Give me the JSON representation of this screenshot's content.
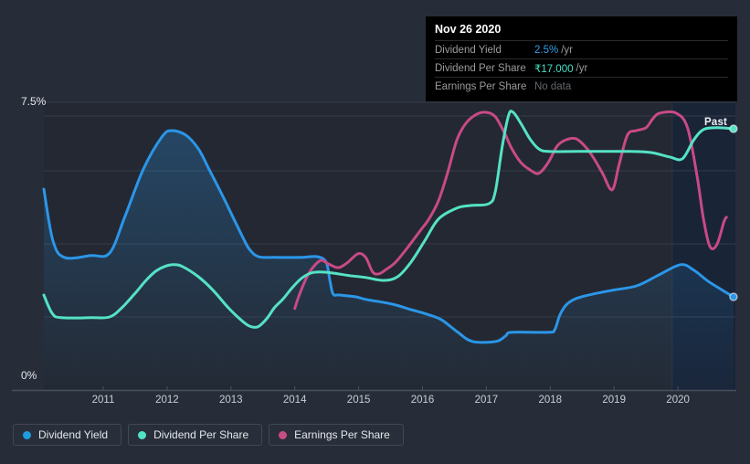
{
  "colors": {
    "background": "#272d38",
    "plot_bg_overlay": "rgba(0,0,0,0.10)",
    "plot_top_edge": "#343d4a",
    "grid": "#39424f",
    "axis": "#47505e",
    "tick": "#4a5361",
    "dividend_yield": "#2b96e8",
    "dividend_per_share": "#55e2c5",
    "earnings_per_share": "#c84a86",
    "area_fill_top": "rgba(43,150,232,0.30)",
    "area_fill_bottom": "rgba(43,150,232,0.02)",
    "past_band": "rgba(13,32,62,0.45)",
    "past_band_edge": "rgba(255,255,255,0.06)",
    "dot_ring": "rgba(255,255,255,0.55)"
  },
  "tooltip": {
    "date": "Nov 26 2020",
    "rows": [
      {
        "label": "Dividend Yield",
        "value": "2.5%",
        "suffix": "/yr",
        "value_color": "#2d9fe8"
      },
      {
        "label": "Dividend Per Share",
        "value": "₹17.000",
        "suffix": "/yr",
        "value_color": "#46e0c4"
      },
      {
        "label": "Earnings Per Share",
        "value": "No data",
        "suffix": "",
        "value_color": "#63686f"
      }
    ]
  },
  "chart_data": {
    "type": "line",
    "title": "",
    "y_tick_labels": {
      "top": "7.5%",
      "bottom": "0%"
    },
    "ylim": [
      0,
      7.5
    ],
    "x_range": [
      2010.05,
      2020.9
    ],
    "x_tick_labels": [
      "2011",
      "2012",
      "2013",
      "2014",
      "2015",
      "2016",
      "2017",
      "2018",
      "2019",
      "2020"
    ],
    "gridline_values": [
      7.5,
      6,
      4,
      2
    ],
    "grid": true,
    "legend_position": "bottom",
    "past_region": {
      "start_year": 2019.91,
      "label": "Past"
    },
    "series": [
      {
        "name": "Dividend Yield",
        "color": "#2b96e8",
        "area": true,
        "end_dot": true,
        "end_value_label": "2.5% /yr",
        "points": [
          [
            2010.07,
            5.5
          ],
          [
            2010.21,
            4.1
          ],
          [
            2010.39,
            3.63
          ],
          [
            2010.81,
            3.68
          ],
          [
            2011.1,
            3.75
          ],
          [
            2011.34,
            4.75
          ],
          [
            2011.63,
            6.05
          ],
          [
            2011.92,
            6.93
          ],
          [
            2012.07,
            7.1
          ],
          [
            2012.29,
            6.98
          ],
          [
            2012.49,
            6.6
          ],
          [
            2012.67,
            6.0
          ],
          [
            2012.86,
            5.35
          ],
          [
            2013.06,
            4.63
          ],
          [
            2013.2,
            4.13
          ],
          [
            2013.29,
            3.85
          ],
          [
            2013.43,
            3.65
          ],
          [
            2013.68,
            3.63
          ],
          [
            2014.1,
            3.63
          ],
          [
            2014.35,
            3.65
          ],
          [
            2014.49,
            3.5
          ],
          [
            2014.55,
            3.0
          ],
          [
            2014.6,
            2.63
          ],
          [
            2014.7,
            2.6
          ],
          [
            2014.96,
            2.55
          ],
          [
            2015.11,
            2.48
          ],
          [
            2015.53,
            2.35
          ],
          [
            2015.82,
            2.2
          ],
          [
            2016.06,
            2.08
          ],
          [
            2016.29,
            1.93
          ],
          [
            2016.54,
            1.6
          ],
          [
            2016.78,
            1.33
          ],
          [
            2017.15,
            1.33
          ],
          [
            2017.3,
            1.48
          ],
          [
            2017.4,
            1.58
          ],
          [
            2017.97,
            1.58
          ],
          [
            2018.07,
            1.65
          ],
          [
            2018.15,
            2.05
          ],
          [
            2018.25,
            2.33
          ],
          [
            2018.4,
            2.5
          ],
          [
            2018.68,
            2.63
          ],
          [
            2018.97,
            2.73
          ],
          [
            2019.35,
            2.85
          ],
          [
            2019.68,
            3.13
          ],
          [
            2020.04,
            3.43
          ],
          [
            2020.25,
            3.28
          ],
          [
            2020.47,
            2.98
          ],
          [
            2020.68,
            2.75
          ],
          [
            2020.87,
            2.55
          ]
        ]
      },
      {
        "name": "Earnings Per Share",
        "color": "#c84a86",
        "area": false,
        "end_dot": false,
        "end_value_label": "No data",
        "points": [
          [
            2014.0,
            2.23
          ],
          [
            2014.07,
            2.6
          ],
          [
            2014.2,
            3.13
          ],
          [
            2014.32,
            3.43
          ],
          [
            2014.42,
            3.55
          ],
          [
            2014.53,
            3.45
          ],
          [
            2014.68,
            3.35
          ],
          [
            2014.82,
            3.48
          ],
          [
            2014.99,
            3.73
          ],
          [
            2015.11,
            3.63
          ],
          [
            2015.22,
            3.23
          ],
          [
            2015.32,
            3.18
          ],
          [
            2015.43,
            3.3
          ],
          [
            2015.58,
            3.5
          ],
          [
            2015.78,
            3.93
          ],
          [
            2015.96,
            4.35
          ],
          [
            2016.1,
            4.68
          ],
          [
            2016.25,
            5.18
          ],
          [
            2016.39,
            5.93
          ],
          [
            2016.54,
            6.85
          ],
          [
            2016.68,
            7.3
          ],
          [
            2016.85,
            7.55
          ],
          [
            2017.0,
            7.6
          ],
          [
            2017.14,
            7.48
          ],
          [
            2017.28,
            7.05
          ],
          [
            2017.4,
            6.6
          ],
          [
            2017.54,
            6.23
          ],
          [
            2017.68,
            6.03
          ],
          [
            2017.82,
            5.93
          ],
          [
            2017.97,
            6.23
          ],
          [
            2018.11,
            6.68
          ],
          [
            2018.25,
            6.85
          ],
          [
            2018.4,
            6.88
          ],
          [
            2018.54,
            6.68
          ],
          [
            2018.68,
            6.35
          ],
          [
            2018.82,
            5.93
          ],
          [
            2018.97,
            5.48
          ],
          [
            2019.08,
            6.18
          ],
          [
            2019.21,
            6.98
          ],
          [
            2019.35,
            7.1
          ],
          [
            2019.5,
            7.18
          ],
          [
            2019.61,
            7.43
          ],
          [
            2019.72,
            7.58
          ],
          [
            2019.97,
            7.58
          ],
          [
            2020.15,
            7.18
          ],
          [
            2020.3,
            5.85
          ],
          [
            2020.4,
            4.68
          ],
          [
            2020.5,
            3.93
          ],
          [
            2020.61,
            3.98
          ],
          [
            2020.72,
            4.6
          ],
          [
            2020.76,
            4.73
          ]
        ]
      },
      {
        "name": "Dividend Per Share",
        "color": "#55e2c5",
        "area": false,
        "end_dot": true,
        "end_value_label": "₹17.000 /yr",
        "points": [
          [
            2010.07,
            2.6
          ],
          [
            2010.2,
            2.1
          ],
          [
            2010.34,
            1.98
          ],
          [
            2010.81,
            1.98
          ],
          [
            2011.1,
            2.0
          ],
          [
            2011.29,
            2.25
          ],
          [
            2011.49,
            2.63
          ],
          [
            2011.67,
            3.0
          ],
          [
            2011.82,
            3.25
          ],
          [
            2011.96,
            3.38
          ],
          [
            2012.1,
            3.43
          ],
          [
            2012.24,
            3.38
          ],
          [
            2012.49,
            3.1
          ],
          [
            2012.72,
            2.73
          ],
          [
            2012.96,
            2.25
          ],
          [
            2013.15,
            1.93
          ],
          [
            2013.29,
            1.75
          ],
          [
            2013.42,
            1.73
          ],
          [
            2013.56,
            1.95
          ],
          [
            2013.68,
            2.25
          ],
          [
            2013.82,
            2.5
          ],
          [
            2013.96,
            2.8
          ],
          [
            2014.1,
            3.05
          ],
          [
            2014.25,
            3.2
          ],
          [
            2014.39,
            3.23
          ],
          [
            2014.6,
            3.2
          ],
          [
            2014.86,
            3.13
          ],
          [
            2015.11,
            3.08
          ],
          [
            2015.39,
            3.0
          ],
          [
            2015.61,
            3.1
          ],
          [
            2015.82,
            3.5
          ],
          [
            2016.04,
            4.1
          ],
          [
            2016.25,
            4.68
          ],
          [
            2016.54,
            4.98
          ],
          [
            2016.75,
            5.05
          ],
          [
            2017.04,
            5.1
          ],
          [
            2017.14,
            5.43
          ],
          [
            2017.25,
            6.68
          ],
          [
            2017.35,
            7.53
          ],
          [
            2017.42,
            7.6
          ],
          [
            2017.54,
            7.3
          ],
          [
            2017.68,
            6.88
          ],
          [
            2017.82,
            6.6
          ],
          [
            2017.97,
            6.53
          ],
          [
            2018.4,
            6.53
          ],
          [
            2018.82,
            6.53
          ],
          [
            2019.25,
            6.53
          ],
          [
            2019.58,
            6.5
          ],
          [
            2019.87,
            6.38
          ],
          [
            2020.07,
            6.33
          ],
          [
            2020.25,
            6.85
          ],
          [
            2020.4,
            7.13
          ],
          [
            2020.61,
            7.18
          ],
          [
            2020.87,
            7.15
          ]
        ]
      }
    ]
  },
  "legend": [
    {
      "label": "Dividend Yield",
      "color": "#1e9ce0"
    },
    {
      "label": "Dividend Per Share",
      "color": "#50e2c3"
    },
    {
      "label": "Earnings Per Share",
      "color": "#c74d86"
    }
  ]
}
